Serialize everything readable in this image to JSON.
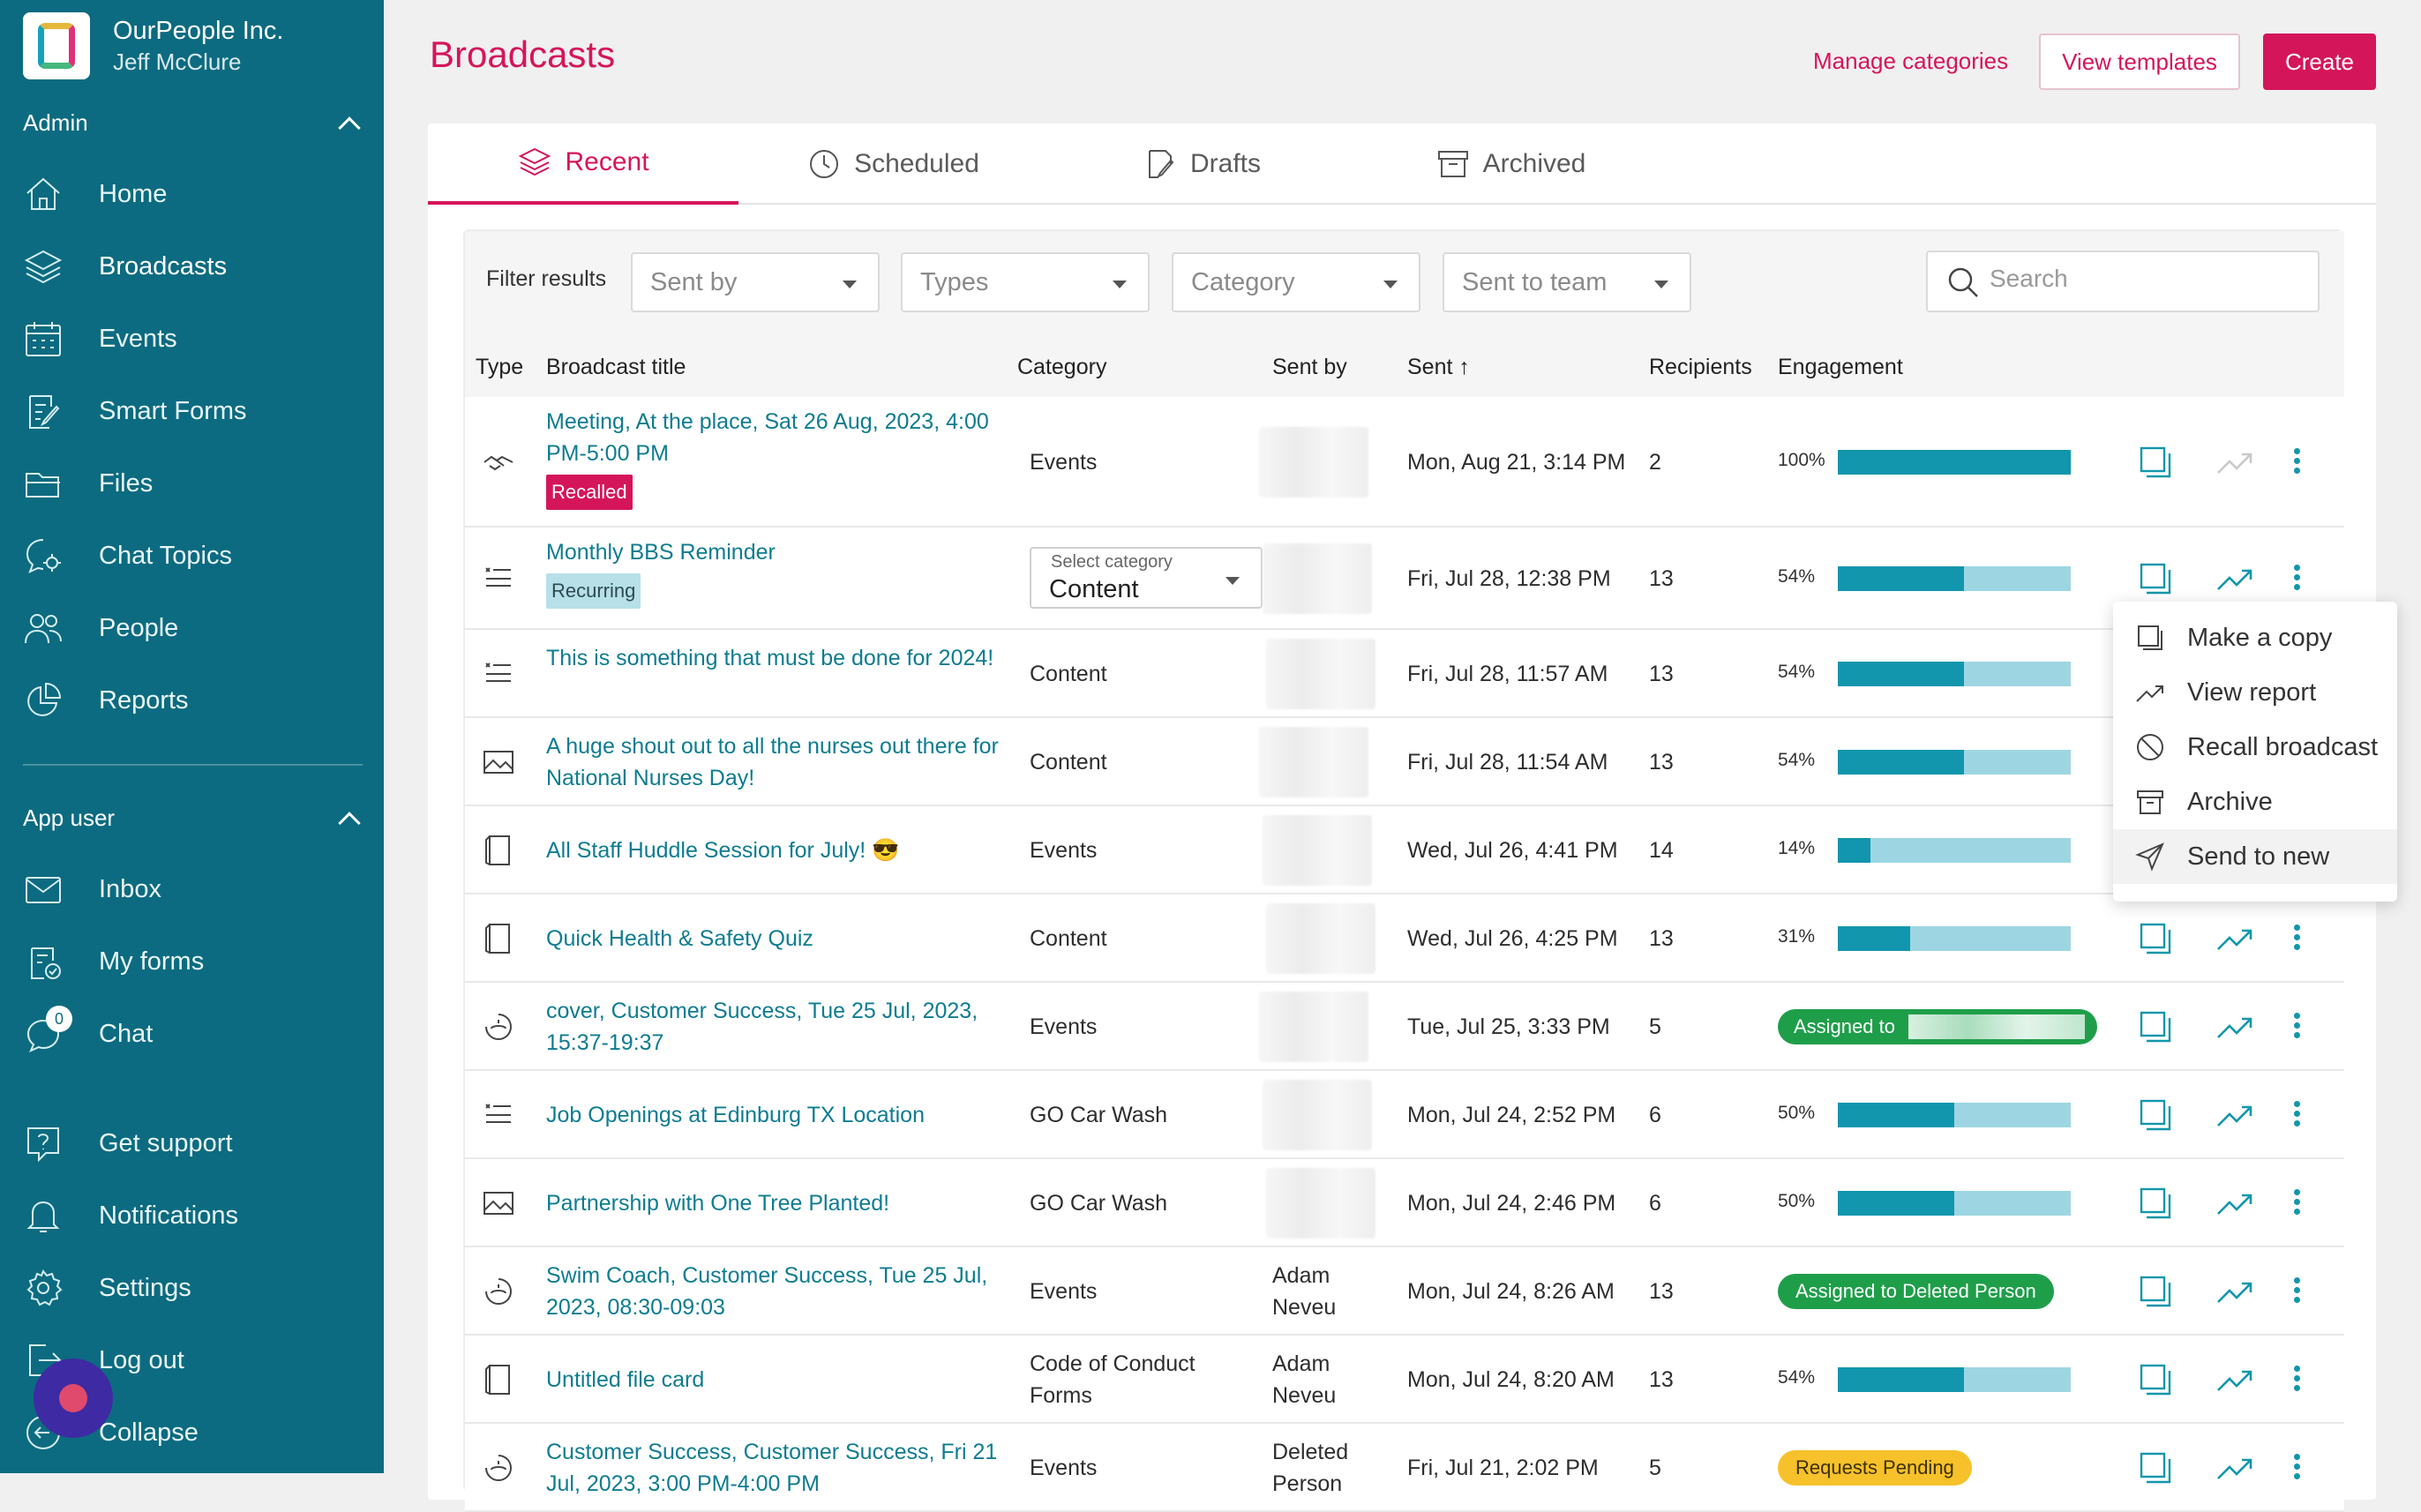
{
  "org": {
    "name": "OurPeople Inc.",
    "user": "Jeff McClure"
  },
  "sidebar": {
    "admin_label": "Admin",
    "admin_items": [
      "Home",
      "Broadcasts",
      "Events",
      "Smart Forms",
      "Files",
      "Chat Topics",
      "People",
      "Reports"
    ],
    "app_user_label": "App user",
    "app_items": [
      "Inbox",
      "My forms",
      "Chat"
    ],
    "chat_badge": "0",
    "footer_items": [
      "Get support",
      "Notifications",
      "Settings",
      "Log out",
      "Collapse"
    ]
  },
  "header": {
    "title": "Broadcasts",
    "manage_categories": "Manage categories",
    "view_templates": "View templates",
    "create": "Create"
  },
  "tabs": [
    "Recent",
    "Scheduled",
    "Drafts",
    "Archived"
  ],
  "filters": {
    "label": "Filter results",
    "sent_by": "Sent by",
    "types": "Types",
    "category": "Category",
    "sent_to_team": "Sent to team",
    "search_placeholder": "Search"
  },
  "columns": [
    "Type",
    "Broadcast title",
    "Category",
    "Sent by",
    "Sent",
    "Recipients",
    "Engagement"
  ],
  "rows": [
    {
      "title": "Meeting, At the place, Sat 26 Aug, 2023, 4:00 PM-5:00 PM",
      "tag": "Recalled",
      "category": "Events",
      "sent_by": "",
      "sent": "Mon, Aug 21, 3:14 PM",
      "recipients": "2",
      "engagement": "100%",
      "fill": 1.0
    },
    {
      "title": "Monthly BBS Reminder",
      "tag": "Recurring",
      "category_select_label": "Select category",
      "category_select_value": "Content",
      "sent_by": "",
      "sent": "Fri, Jul 28, 12:38 PM",
      "recipients": "13",
      "engagement": "54%",
      "fill": 0.54
    },
    {
      "title": "This is something that must be done for 2024!",
      "category": "Content",
      "sent_by": "",
      "sent": "Fri, Jul 28, 11:57 AM",
      "recipients": "13",
      "engagement": "54%",
      "fill": 0.54
    },
    {
      "title": "A huge shout out to all the nurses out there for National Nurses Day!",
      "category": "Content",
      "sent_by": "",
      "sent": "Fri, Jul 28, 11:54 AM",
      "recipients": "13",
      "engagement": "54%",
      "fill": 0.54
    },
    {
      "title": "All Staff Huddle Session for July! 😎",
      "category": "Events",
      "sent_by": "",
      "sent": "Wed, Jul 26, 4:41 PM",
      "recipients": "14",
      "engagement": "14%",
      "fill": 0.14
    },
    {
      "title": "Quick Health & Safety Quiz",
      "category": "Content",
      "sent_by": "",
      "sent": "Wed, Jul 26, 4:25 PM",
      "recipients": "13",
      "engagement": "31%",
      "fill": 0.31
    },
    {
      "title": "cover, Customer Success, Tue 25 Jul, 2023, 15:37-19:37",
      "category": "Events",
      "sent_by": "",
      "sent": "Tue, Jul 25, 3:33 PM",
      "recipients": "5",
      "status": "Assigned to"
    },
    {
      "title": "Job Openings at Edinburg TX Location",
      "category": "GO Car Wash",
      "sent_by": "",
      "sent": "Mon, Jul 24, 2:52 PM",
      "recipients": "6",
      "engagement": "50%",
      "fill": 0.5
    },
    {
      "title": "Partnership with One Tree Planted!",
      "category": "GO Car Wash",
      "sent_by": "",
      "sent": "Mon, Jul 24, 2:46 PM",
      "recipients": "6",
      "engagement": "50%",
      "fill": 0.5
    },
    {
      "title": "Swim Coach, Customer Success, Tue 25 Jul, 2023, 08:30-09:03",
      "category": "Events",
      "sent_by": "Adam Neveu",
      "sent": "Mon, Jul 24, 8:26 AM",
      "recipients": "13",
      "status": "Assigned to Deleted Person"
    },
    {
      "title": "Untitled file card",
      "category": "Code of Conduct Forms",
      "sent_by": "Adam Neveu",
      "sent": "Mon, Jul 24, 8:20 AM",
      "recipients": "13",
      "engagement": "54%",
      "fill": 0.54
    },
    {
      "title": "Customer Success, Customer Success, Fri 21 Jul, 2023, 3:00 PM-4:00 PM",
      "category": "Events",
      "sent_by": "Deleted Person",
      "sent": "Fri, Jul 21, 2:02 PM",
      "recipients": "5",
      "status": "Requests Pending"
    }
  ],
  "context_menu": [
    "Make a copy",
    "View report",
    "Recall broadcast",
    "Archive",
    "Send to new"
  ],
  "colors": {
    "brand": "#d5155a",
    "sidebar": "#0c6b80",
    "accent": "#1196ad",
    "green": "#1f9e4a",
    "yellow": "#f6c12a"
  }
}
